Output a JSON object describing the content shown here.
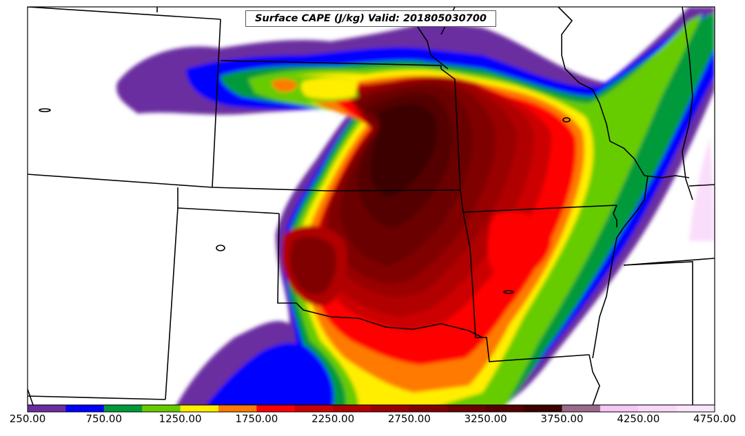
{
  "title": "Surface CAPE (J/kg) Valid: 201805030700",
  "colorbar": {
    "tick_labels": [
      "250.00",
      "750.00",
      "1250.00",
      "1750.00",
      "2250.00",
      "2750.00",
      "3250.00",
      "3750.00",
      "4250.00",
      "4750.00"
    ],
    "levels": [
      250,
      500,
      750,
      1000,
      1250,
      1500,
      1750,
      2000,
      2250,
      2500,
      2750,
      3000,
      3250,
      3500,
      3750,
      4000,
      4250,
      4500,
      4750
    ],
    "colors": [
      "#6a2ea0",
      "#0000ff",
      "#009a3a",
      "#66cc00",
      "#ffee00",
      "#ff7a00",
      "#ff0000",
      "#cc0000",
      "#b00000",
      "#990000",
      "#800000",
      "#6a0000",
      "#540000",
      "#3c0000",
      "#9a6a8a",
      "#f6c6f6",
      "#f8d8f8",
      "#fae6fa"
    ]
  },
  "chart_data": {
    "type": "heatmap",
    "title": "Surface CAPE (J/kg) Valid: 201805030700",
    "variable": "Surface CAPE",
    "units": "J/kg",
    "valid_time": "201805030700",
    "colorbar_range": [
      250,
      4750
    ],
    "colorbar_tick_labels": [
      250,
      750,
      1250,
      1750,
      2250,
      2750,
      3250,
      3750,
      4250,
      4750
    ],
    "contour_interval": 250
  }
}
